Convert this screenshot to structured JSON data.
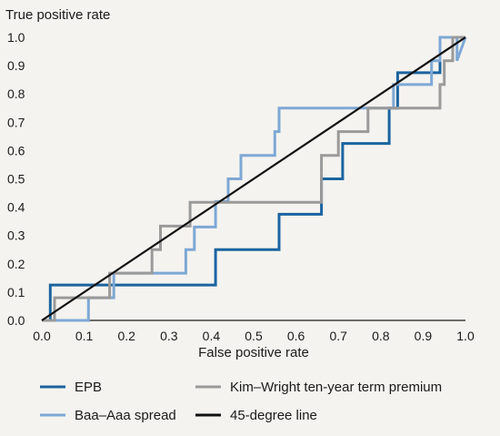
{
  "chart_data": {
    "type": "line",
    "ylabel": "True positive rate",
    "xlabel": "False positive rate",
    "xlim": [
      0,
      1
    ],
    "ylim": [
      0,
      1
    ],
    "x_ticks": [
      "0.0",
      "0.1",
      "0.2",
      "0.3",
      "0.4",
      "0.5",
      "0.6",
      "0.7",
      "0.8",
      "0.9",
      "1.0"
    ],
    "y_ticks": [
      "0.0",
      "0.1",
      "0.2",
      "0.3",
      "0.4",
      "0.5",
      "0.6",
      "0.7",
      "0.8",
      "0.9",
      "1.0"
    ],
    "grid": false,
    "legend_position": "bottom",
    "series": [
      {
        "name": "EPB",
        "color": "#1b64a0",
        "points": [
          [
            0,
            0
          ],
          [
            0.02,
            0
          ],
          [
            0.02,
            0.125
          ],
          [
            0.41,
            0.125
          ],
          [
            0.41,
            0.25
          ],
          [
            0.56,
            0.25
          ],
          [
            0.56,
            0.375
          ],
          [
            0.66,
            0.375
          ],
          [
            0.66,
            0.5
          ],
          [
            0.71,
            0.5
          ],
          [
            0.71,
            0.625
          ],
          [
            0.82,
            0.625
          ],
          [
            0.82,
            0.75
          ],
          [
            0.84,
            0.75
          ],
          [
            0.84,
            0.875
          ],
          [
            0.94,
            0.875
          ],
          [
            0.94,
            1.0
          ],
          [
            1.0,
            1.0
          ]
        ]
      },
      {
        "name": "Baa–Aaa spread",
        "color": "#7ea8d5",
        "points": [
          [
            0,
            0
          ],
          [
            0.11,
            0
          ],
          [
            0.11,
            0.08
          ],
          [
            0.17,
            0.08
          ],
          [
            0.17,
            0.167
          ],
          [
            0.34,
            0.167
          ],
          [
            0.34,
            0.25
          ],
          [
            0.36,
            0.25
          ],
          [
            0.36,
            0.33
          ],
          [
            0.41,
            0.33
          ],
          [
            0.41,
            0.42
          ],
          [
            0.44,
            0.42
          ],
          [
            0.44,
            0.5
          ],
          [
            0.47,
            0.5
          ],
          [
            0.47,
            0.583
          ],
          [
            0.55,
            0.583
          ],
          [
            0.55,
            0.667
          ],
          [
            0.56,
            0.667
          ],
          [
            0.56,
            0.75
          ],
          [
            0.83,
            0.75
          ],
          [
            0.83,
            0.833
          ],
          [
            0.92,
            0.833
          ],
          [
            0.92,
            0.917
          ],
          [
            0.94,
            0.917
          ],
          [
            0.94,
            1.0
          ],
          [
            0.98,
            1.0
          ],
          [
            0.98,
            0.917
          ],
          [
            1.0,
            1.0
          ]
        ]
      },
      {
        "name": "Kim–Wright ten-year term premium",
        "color": "#9a9a9a",
        "points": [
          [
            0,
            0
          ],
          [
            0.03,
            0
          ],
          [
            0.03,
            0.08
          ],
          [
            0.16,
            0.08
          ],
          [
            0.16,
            0.167
          ],
          [
            0.26,
            0.167
          ],
          [
            0.26,
            0.25
          ],
          [
            0.28,
            0.25
          ],
          [
            0.28,
            0.333
          ],
          [
            0.35,
            0.333
          ],
          [
            0.35,
            0.417
          ],
          [
            0.66,
            0.417
          ],
          [
            0.66,
            0.583
          ],
          [
            0.7,
            0.583
          ],
          [
            0.7,
            0.667
          ],
          [
            0.77,
            0.667
          ],
          [
            0.77,
            0.75
          ],
          [
            0.94,
            0.75
          ],
          [
            0.94,
            0.833
          ],
          [
            0.95,
            0.833
          ],
          [
            0.95,
            0.917
          ],
          [
            0.97,
            0.917
          ],
          [
            0.97,
            1.0
          ],
          [
            1.0,
            1.0
          ]
        ]
      },
      {
        "name": "45-degree line",
        "color": "#111111",
        "points": [
          [
            0,
            0
          ],
          [
            1,
            1
          ]
        ]
      }
    ],
    "legend_order": [
      0,
      2,
      1,
      3
    ]
  }
}
